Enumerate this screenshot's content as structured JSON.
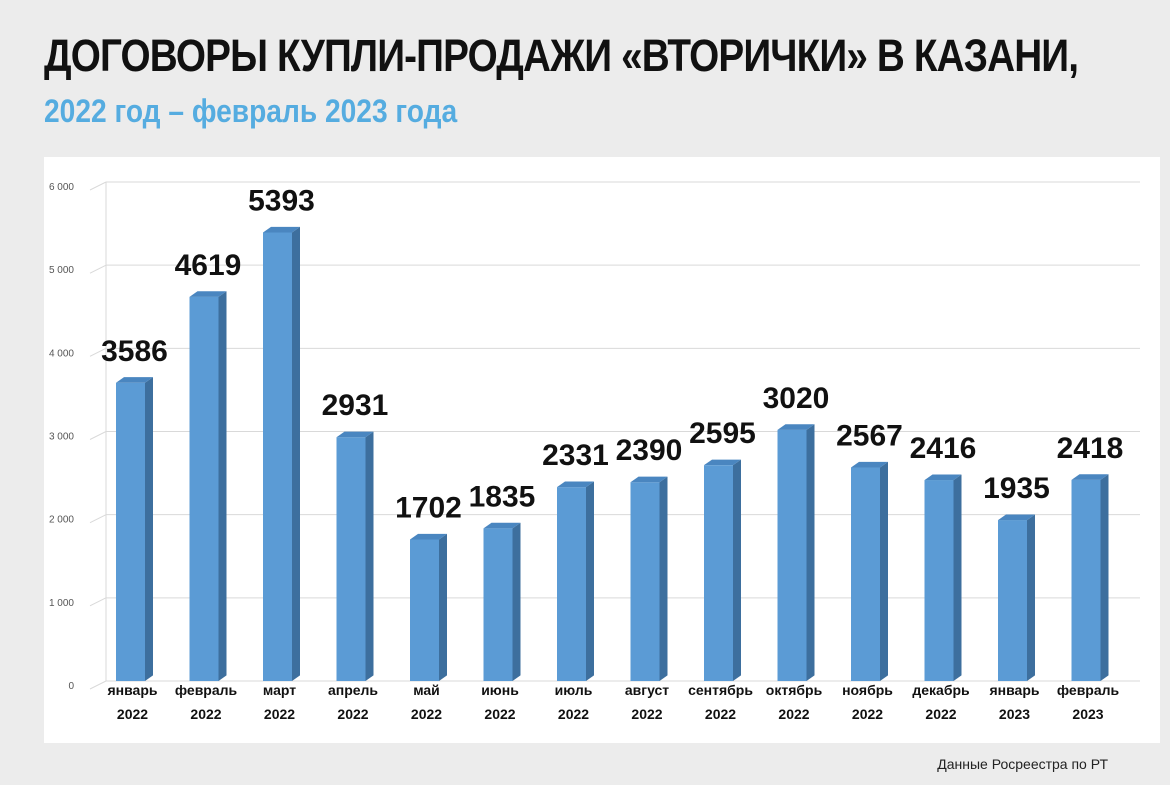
{
  "header": {
    "title": "ДОГОВОРЫ КУПЛИ-ПРОДАЖИ «ВТОРИЧКИ» В КАЗАНИ,",
    "subtitle": "2022 год – февраль 2023 года"
  },
  "source_note": "Данные Росреестра по РТ",
  "colors": {
    "bar_front": "#5b9bd5",
    "bar_side": "#3d6f9e",
    "bar_top": "#4a86c0",
    "subtitle": "#55ace0"
  },
  "chart_data": {
    "type": "bar",
    "title": "",
    "xlabel": "",
    "ylabel": "",
    "ylim": [
      0,
      6000
    ],
    "y_ticks": [
      "0",
      "1 000",
      "2 000",
      "3 000",
      "4 000",
      "5 000",
      "6 000"
    ],
    "grid": true,
    "legend": "none",
    "categories": [
      [
        "январь",
        "2022"
      ],
      [
        "февраль",
        "2022"
      ],
      [
        "март",
        "2022"
      ],
      [
        "апрель",
        "2022"
      ],
      [
        "май",
        "2022"
      ],
      [
        "июнь",
        "2022"
      ],
      [
        "июль",
        "2022"
      ],
      [
        "август",
        "2022"
      ],
      [
        "сентябрь",
        "2022"
      ],
      [
        "октябрь",
        "2022"
      ],
      [
        "ноябрь",
        "2022"
      ],
      [
        "декабрь",
        "2022"
      ],
      [
        "январь",
        "2023"
      ],
      [
        "февраль",
        "2023"
      ]
    ],
    "values": [
      3586,
      4619,
      5393,
      2931,
      1702,
      1835,
      2331,
      2390,
      2595,
      3020,
      2567,
      2416,
      1935,
      2418
    ],
    "value_labels": [
      "3586",
      "4619",
      "5393",
      "2931",
      "1702",
      "1835",
      "2331",
      "2390",
      "2595",
      "3020",
      "2567",
      "2416",
      "1935",
      "2418"
    ]
  }
}
